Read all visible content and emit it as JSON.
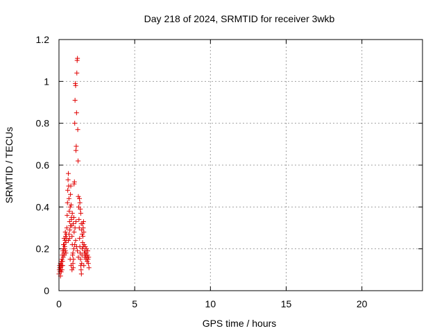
{
  "chart_data": {
    "type": "scatter",
    "title": "Day 218 of 2024, SRMTID for receiver 3wkb",
    "xlabel": "GPS time / hours",
    "ylabel": "SRMTID / TECUs",
    "xlim": [
      0,
      24
    ],
    "ylim": [
      0,
      1.2
    ],
    "xticks": [
      0,
      5,
      10,
      15,
      20
    ],
    "yticks": [
      0,
      0.2,
      0.4,
      0.6,
      0.8,
      1,
      1.2
    ],
    "xtick_labels": [
      "0",
      "5",
      "10",
      "15",
      "20"
    ],
    "ytick_labels": [
      "0",
      "0.2",
      "0.4",
      "0.6",
      "0.8",
      "1",
      "1.2"
    ],
    "grid": true,
    "marker": "plus",
    "series": [
      {
        "color": "#e00000",
        "points": [
          [
            0.0,
            0.08
          ],
          [
            0.02,
            0.1
          ],
          [
            0.04,
            0.12
          ],
          [
            0.06,
            0.09
          ],
          [
            0.08,
            0.11
          ],
          [
            0.1,
            0.13
          ],
          [
            0.12,
            0.1
          ],
          [
            0.14,
            0.12
          ],
          [
            0.16,
            0.14
          ],
          [
            0.18,
            0.12
          ],
          [
            0.2,
            0.15
          ],
          [
            0.22,
            0.17
          ],
          [
            0.24,
            0.14
          ],
          [
            0.26,
            0.19
          ],
          [
            0.28,
            0.16
          ],
          [
            0.3,
            0.2
          ],
          [
            0.32,
            0.18
          ],
          [
            0.34,
            0.22
          ],
          [
            0.36,
            0.17
          ],
          [
            0.38,
            0.21
          ],
          [
            0.4,
            0.24
          ],
          [
            0.42,
            0.19
          ],
          [
            0.44,
            0.26
          ],
          [
            0.46,
            0.23
          ],
          [
            0.48,
            0.27
          ],
          [
            0.5,
            0.25
          ],
          [
            0.52,
            0.3
          ],
          [
            0.54,
            0.36
          ],
          [
            0.56,
            0.42
          ],
          [
            0.58,
            0.48
          ],
          [
            0.6,
            0.53
          ],
          [
            0.62,
            0.56
          ],
          [
            0.64,
            0.5
          ],
          [
            0.66,
            0.44
          ],
          [
            0.68,
            0.38
          ],
          [
            0.7,
            0.33
          ],
          [
            0.72,
            0.29
          ],
          [
            0.74,
            0.4
          ],
          [
            0.76,
            0.46
          ],
          [
            0.78,
            0.5
          ],
          [
            0.8,
            0.41
          ],
          [
            0.82,
            0.35
          ],
          [
            0.84,
            0.31
          ],
          [
            0.86,
            0.26
          ],
          [
            0.88,
            0.22
          ],
          [
            0.9,
            0.17
          ],
          [
            0.92,
            0.13
          ],
          [
            0.94,
            0.11
          ],
          [
            0.96,
            0.15
          ],
          [
            0.98,
            0.35
          ],
          [
            1.0,
            0.51
          ],
          [
            1.02,
            0.52
          ],
          [
            1.04,
            0.8
          ],
          [
            1.06,
            0.91
          ],
          [
            1.08,
            0.99
          ],
          [
            1.1,
            0.98
          ],
          [
            1.12,
            0.67
          ],
          [
            1.14,
            0.69
          ],
          [
            1.16,
            0.85
          ],
          [
            1.18,
            1.04
          ],
          [
            1.2,
            1.1
          ],
          [
            1.22,
            1.11
          ],
          [
            1.24,
            0.77
          ],
          [
            1.26,
            0.62
          ],
          [
            1.28,
            0.45
          ],
          [
            1.3,
            0.4
          ],
          [
            1.32,
            0.34
          ],
          [
            1.34,
            0.3
          ],
          [
            1.36,
            0.25
          ],
          [
            1.38,
            0.21
          ],
          [
            1.4,
            0.18
          ],
          [
            1.42,
            0.15
          ],
          [
            1.44,
            0.12
          ],
          [
            1.46,
            0.1
          ],
          [
            1.48,
            0.08
          ],
          [
            1.5,
            0.13
          ],
          [
            1.52,
            0.17
          ],
          [
            1.54,
            0.2
          ],
          [
            1.56,
            0.23
          ],
          [
            1.58,
            0.26
          ],
          [
            1.6,
            0.3
          ],
          [
            1.62,
            0.33
          ],
          [
            1.64,
            0.28
          ],
          [
            1.66,
            0.22
          ],
          [
            1.68,
            0.18
          ],
          [
            1.7,
            0.16
          ],
          [
            1.72,
            0.19
          ],
          [
            1.74,
            0.21
          ],
          [
            1.76,
            0.17
          ],
          [
            1.78,
            0.15
          ],
          [
            1.8,
            0.18
          ],
          [
            1.82,
            0.2
          ],
          [
            1.84,
            0.16
          ],
          [
            1.86,
            0.14
          ],
          [
            1.88,
            0.17
          ],
          [
            1.9,
            0.19
          ],
          [
            1.92,
            0.15
          ],
          [
            1.94,
            0.13
          ],
          [
            1.96,
            0.16
          ],
          [
            1.98,
            0.11
          ],
          [
            0.74,
            0.15
          ],
          [
            0.8,
            0.12
          ],
          [
            0.86,
            0.1
          ],
          [
            0.92,
            0.18
          ],
          [
            0.98,
            0.2
          ],
          [
            1.04,
            0.22
          ],
          [
            1.1,
            0.24
          ],
          [
            1.16,
            0.21
          ],
          [
            1.22,
            0.19
          ],
          [
            1.28,
            0.16
          ],
          [
            0.62,
            0.24
          ],
          [
            0.66,
            0.27
          ],
          [
            0.7,
            0.25
          ],
          [
            0.76,
            0.31
          ],
          [
            0.82,
            0.34
          ],
          [
            0.88,
            0.37
          ],
          [
            0.94,
            0.32
          ],
          [
            1.0,
            0.28
          ],
          [
            1.06,
            0.3
          ],
          [
            1.12,
            0.33
          ],
          [
            1.35,
            0.44
          ],
          [
            1.38,
            0.42
          ],
          [
            1.41,
            0.39
          ],
          [
            1.44,
            0.37
          ],
          [
            1.47,
            0.32
          ],
          [
            1.5,
            0.29
          ],
          [
            1.53,
            0.27
          ],
          [
            1.56,
            0.32
          ],
          [
            1.6,
            0.21
          ],
          [
            1.64,
            0.12
          ],
          [
            0.3,
            0.22
          ],
          [
            0.34,
            0.25
          ],
          [
            0.38,
            0.2
          ],
          [
            0.42,
            0.28
          ],
          [
            0.46,
            0.18
          ],
          [
            0.1,
            0.07
          ],
          [
            0.15,
            0.09
          ],
          [
            0.2,
            0.1
          ],
          [
            0.25,
            0.12
          ],
          [
            0.05,
            0.11
          ]
        ]
      }
    ]
  }
}
